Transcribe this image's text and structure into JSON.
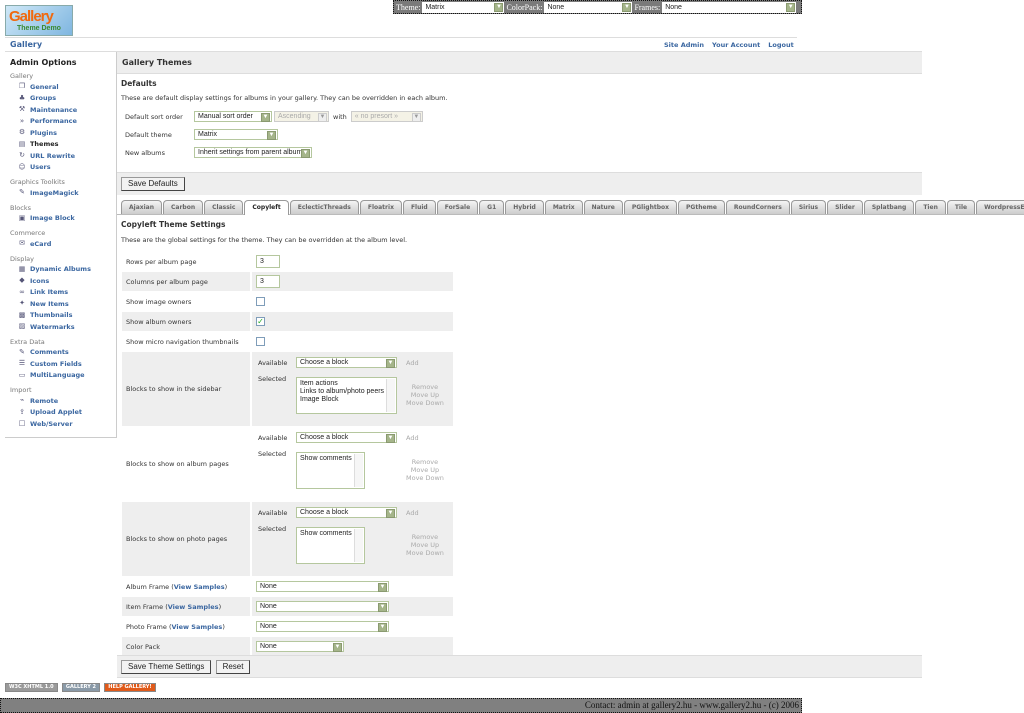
{
  "topbar": {
    "theme_label": "Theme:",
    "theme_value": "Matrix",
    "colorpack_label": "ColorPack:",
    "colorpack_value": "None",
    "frames_label": "Frames:",
    "frames_value": "None"
  },
  "logo": {
    "text": "Gallery",
    "subtext": "Theme Demo"
  },
  "breadcrumb": "Gallery",
  "header_links": [
    "Site Admin",
    "Your Account",
    "Logout"
  ],
  "sidebar": {
    "title": "Admin Options",
    "groups": [
      {
        "name": "Gallery",
        "items": [
          {
            "label": "General",
            "icon": "pages-icon"
          },
          {
            "label": "Groups",
            "icon": "groups-icon"
          },
          {
            "label": "Maintenance",
            "icon": "tools-icon"
          },
          {
            "label": "Performance",
            "icon": "performance-icon"
          },
          {
            "label": "Plugins",
            "icon": "plugins-icon"
          },
          {
            "label": "Themes",
            "icon": "themes-icon",
            "current": true
          },
          {
            "label": "URL Rewrite",
            "icon": "rewrite-icon"
          },
          {
            "label": "Users",
            "icon": "users-icon"
          }
        ]
      },
      {
        "name": "Graphics Toolkits",
        "items": [
          {
            "label": "ImageMagick",
            "icon": "imagemagick-icon"
          }
        ]
      },
      {
        "name": "Blocks",
        "items": [
          {
            "label": "Image Block",
            "icon": "image-block-icon"
          }
        ]
      },
      {
        "name": "Commerce",
        "items": [
          {
            "label": "eCard",
            "icon": "ecard-icon"
          }
        ]
      },
      {
        "name": "Display",
        "items": [
          {
            "label": "Dynamic Albums",
            "icon": "dynamic-albums-icon"
          },
          {
            "label": "Icons",
            "icon": "icons-icon"
          },
          {
            "label": "Link Items",
            "icon": "link-icon"
          },
          {
            "label": "New Items",
            "icon": "new-items-icon"
          },
          {
            "label": "Thumbnails",
            "icon": "thumbnails-icon"
          },
          {
            "label": "Watermarks",
            "icon": "watermark-icon"
          }
        ]
      },
      {
        "name": "Extra Data",
        "items": [
          {
            "label": "Comments",
            "icon": "comments-icon"
          },
          {
            "label": "Custom Fields",
            "icon": "custom-fields-icon"
          },
          {
            "label": "MultiLanguage",
            "icon": "multilanguage-icon"
          }
        ]
      },
      {
        "name": "Import",
        "items": [
          {
            "label": "Remote",
            "icon": "remote-icon"
          },
          {
            "label": "Upload Applet",
            "icon": "upload-applet-icon"
          },
          {
            "label": "Web/Server",
            "icon": "web-server-icon"
          }
        ]
      }
    ]
  },
  "main": {
    "title": "Gallery Themes",
    "defaults": {
      "title": "Defaults",
      "description": "These are default display settings for albums in your gallery. They can be overridden in each album.",
      "sort_label": "Default sort order",
      "sort_value": "Manual sort order",
      "sort_dir": "Ascending",
      "with_label": "with",
      "presort": "« no presort »",
      "theme_label": "Default theme",
      "theme_value": "Matrix",
      "new_albums_label": "New albums",
      "new_albums_value": "Inherit settings from parent album",
      "save_label": "Save Defaults"
    },
    "tabs": [
      "Ajaxian",
      "Carbon",
      "Classic",
      "Copyleft",
      "EclecticThreads",
      "Floatrix",
      "Fluid",
      "ForSale",
      "G1",
      "Hybrid",
      "Matrix",
      "Nature",
      "PGlightbox",
      "PGtheme",
      "RoundCorners",
      "Sirius",
      "Slider",
      "Splatbang",
      "Tien",
      "Tile",
      "WordpressEmbedded"
    ],
    "active_tab": "Copyleft",
    "settings": {
      "title": "Copyleft Theme Settings",
      "description": "These are the global settings for the theme. They can be overridden at the album level.",
      "rows_label": "Rows per album page",
      "rows_value": "3",
      "cols_label": "Columns per album page",
      "cols_value": "3",
      "image_owners_label": "Show image owners",
      "image_owners": false,
      "album_owners_label": "Show album owners",
      "album_owners": true,
      "micro_nav_label": "Show micro navigation thumbnails",
      "micro_nav": false,
      "available_label": "Available",
      "selected_label": "Selected",
      "choose": "Choose a block",
      "add": "Add",
      "remove": "Remove",
      "move_up": "Move Up",
      "move_down": "Move Down",
      "sidebar_blocks_label": "Blocks to show in the sidebar",
      "sidebar_blocks": [
        "Item actions",
        "Links to album/photo peers",
        "Image Block"
      ],
      "album_blocks_label": "Blocks to show on album pages",
      "album_blocks": [
        "Show comments"
      ],
      "photo_blocks_label": "Blocks to show on photo pages",
      "photo_blocks": [
        "Show comments"
      ],
      "album_frame_label": "Album Frame",
      "item_frame_label": "Item Frame",
      "photo_frame_label": "Photo Frame",
      "view_samples": "View Samples",
      "album_frame": "None",
      "item_frame": "None",
      "photo_frame": "None",
      "color_pack_label": "Color Pack",
      "color_pack": "None",
      "save_label": "Save Theme Settings",
      "reset_label": "Reset"
    }
  },
  "badges": [
    "W3C XHTML 1.0",
    "GALLERY 2",
    "HELP GALLERY!"
  ],
  "footer": "Contact: admin at gallery2.hu - www.gallery2.hu - (c) 2006",
  "colors": {
    "link": "#3a66a0",
    "panel": "#eeeeee",
    "input_border": "#b5c79e"
  }
}
